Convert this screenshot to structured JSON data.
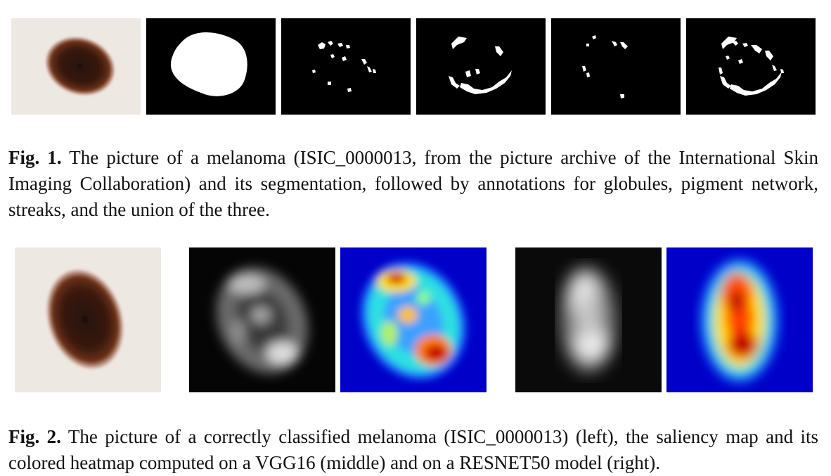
{
  "figures": [
    {
      "label": "Fig. 1.",
      "caption": "The picture of a melanoma (ISIC_0000013, from the picture archive of the International Skin Imaging Collaboration) and its segmentation, followed by annotations for globules, pigment network, streaks, and the union of the three.",
      "panel_count": 6
    },
    {
      "label": "Fig. 2.",
      "caption": "The picture of a correctly classified melanoma (ISIC_0000013) (left), the saliency map and its colored heatmap computed on a VGG16 (middle) and on a RESNET50 model (right).",
      "panel_count": 5
    }
  ],
  "colors": {
    "skin_background": "#ebe4df",
    "lesion_core": "#2a140c",
    "lesion_edge": "#7a3a22",
    "mask_background": "#000000",
    "mask_foreground": "#ffffff",
    "heatmap_low": "#0000c8",
    "heatmap_high": "#c80000"
  }
}
